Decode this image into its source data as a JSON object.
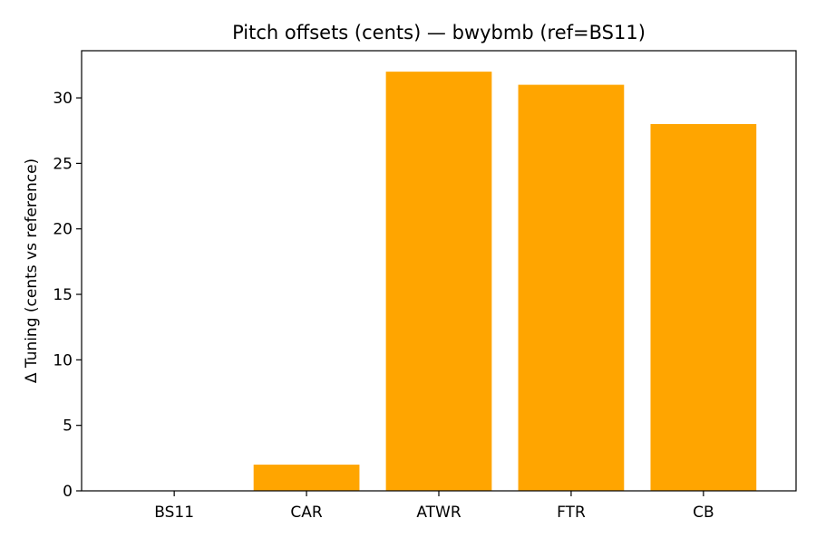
{
  "chart_data": {
    "type": "bar",
    "title": "Pitch offsets (cents) — bwybmb (ref=BS11)",
    "xlabel": "",
    "ylabel": "Δ Tuning (cents vs reference)",
    "categories": [
      "BS11",
      "CAR",
      "ATWR",
      "FTR",
      "CB"
    ],
    "values": [
      0,
      2,
      32,
      31,
      28
    ],
    "ylim": [
      0,
      33.6
    ],
    "yticks": [
      0,
      5,
      10,
      15,
      20,
      25,
      30
    ],
    "bar_color": "#ffa500",
    "grid": false,
    "legend": "none"
  }
}
